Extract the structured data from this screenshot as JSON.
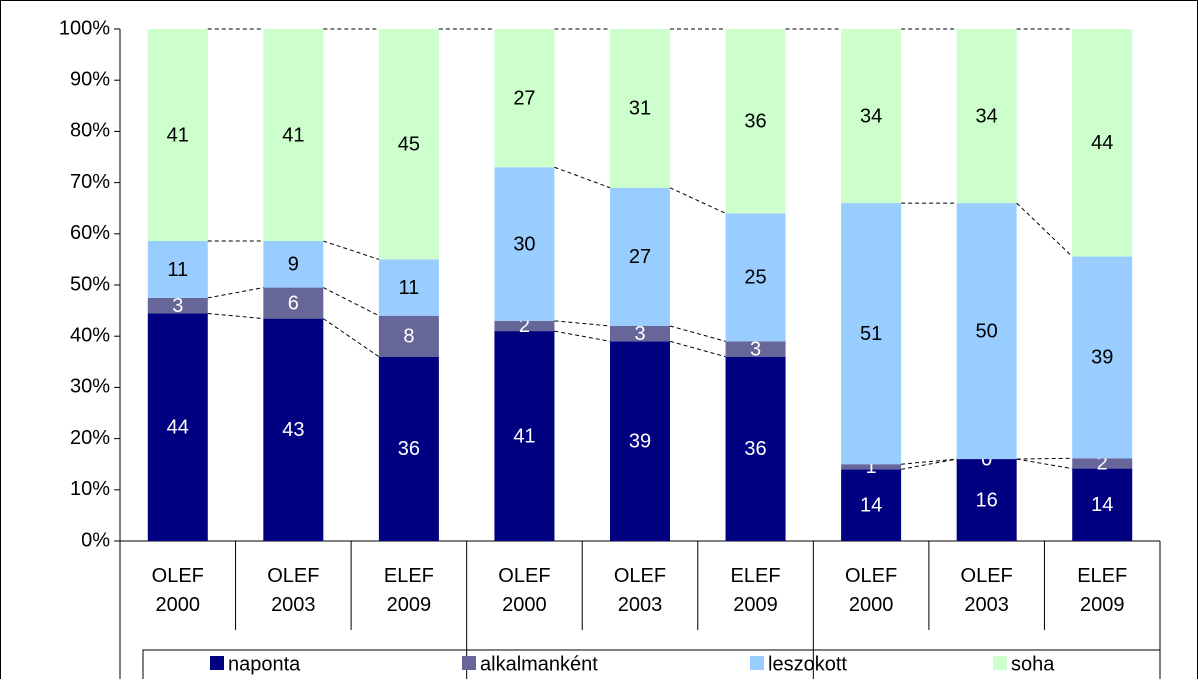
{
  "chart_data": {
    "type": "bar",
    "stacked": "percent",
    "categories": [
      "OLEF 2000",
      "OLEF 2003",
      "ELEF 2009",
      "OLEF 2000",
      "OLEF 2003",
      "ELEF 2009",
      "OLEF 2000",
      "OLEF 2003",
      "ELEF 2009"
    ],
    "series": [
      {
        "name": "naponta",
        "color": "#000080",
        "values": [
          44,
          43,
          36,
          41,
          39,
          36,
          14,
          16,
          14
        ]
      },
      {
        "name": "alkalmanként",
        "color": "#666699",
        "values": [
          3,
          6,
          8,
          2,
          3,
          3,
          1,
          0,
          2
        ]
      },
      {
        "name": "leszokott",
        "color": "#99ccff",
        "values": [
          11,
          9,
          11,
          30,
          27,
          25,
          51,
          50,
          39
        ]
      },
      {
        "name": "soha",
        "color": "#ccffcc",
        "values": [
          41,
          41,
          45,
          27,
          31,
          36,
          34,
          34,
          44
        ]
      }
    ],
    "ylim": [
      0,
      100
    ],
    "yticks": [
      {
        "value": 0,
        "label": "0%"
      },
      {
        "value": 10,
        "label": "10%"
      },
      {
        "value": 20,
        "label": "20%"
      },
      {
        "value": 30,
        "label": "30%"
      },
      {
        "value": 40,
        "label": "40%"
      },
      {
        "value": 50,
        "label": "50%"
      },
      {
        "value": 60,
        "label": "60%"
      },
      {
        "value": 70,
        "label": "70%"
      },
      {
        "value": 80,
        "label": "80%"
      },
      {
        "value": 90,
        "label": "90%"
      },
      {
        "value": 100,
        "label": "100%"
      }
    ],
    "grid": false
  }
}
